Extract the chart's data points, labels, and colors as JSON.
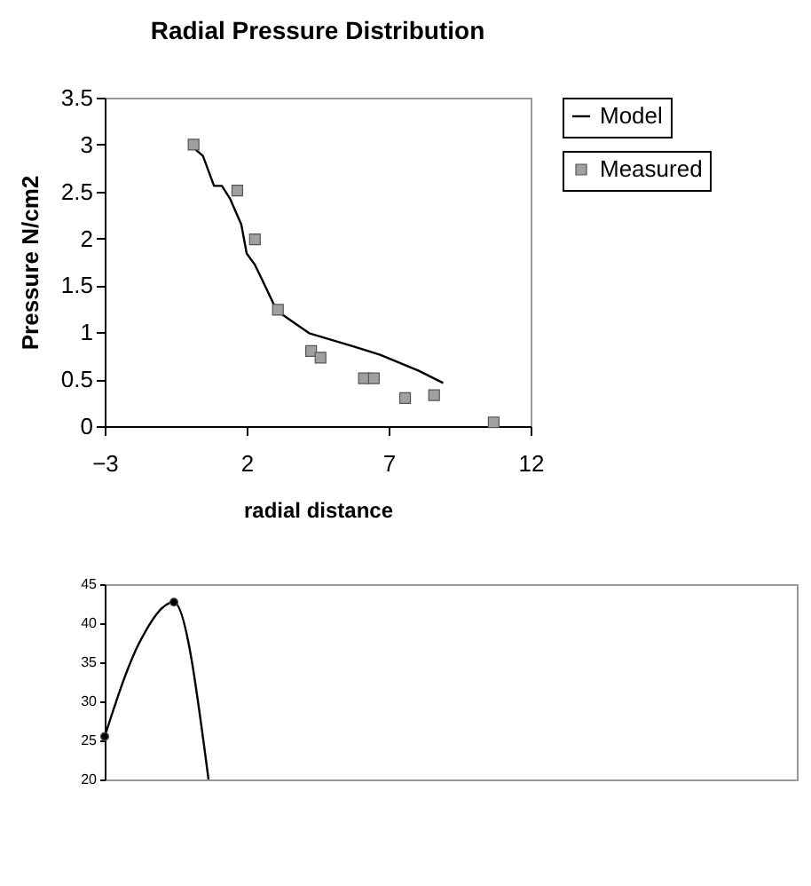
{
  "chart_data": [
    {
      "type": "line",
      "title": "Radial Pressure Distribution",
      "xlabel": "radial distance",
      "ylabel": "Pressure N/cm2",
      "xlim": [
        -3,
        12
      ],
      "xticks": [
        -3,
        2,
        7,
        12
      ],
      "ylim": [
        0,
        3.5
      ],
      "yticks": [
        0,
        0.5,
        1,
        1.5,
        2,
        2.5,
        3,
        3.5
      ],
      "grid": false,
      "legend": "right",
      "series": [
        {
          "name": "Model",
          "type": "line",
          "color": "#000000",
          "marker": "none",
          "x": [
            0,
            0.46,
            0.85,
            1.13,
            1.42,
            1.81,
            2,
            2.29,
            2.67,
            3.06,
            4.2,
            5.75,
            6.7,
            8.06,
            8.92
          ],
          "values": [
            3.0,
            2.88,
            2.56,
            2.56,
            2.42,
            2.15,
            1.84,
            1.72,
            1.48,
            1.23,
            0.99,
            0.85,
            0.76,
            0.59,
            0.46
          ]
        },
        {
          "name": "Measured",
          "type": "scatter",
          "color": "#a0a0a0",
          "marker": "square",
          "x": [
            0.13,
            1.67,
            2.29,
            3.1,
            4.27,
            4.6,
            6.13,
            6.48,
            7.58,
            8.6,
            10.7
          ],
          "values": [
            3.0,
            2.51,
            1.99,
            1.24,
            0.8,
            0.73,
            0.51,
            0.51,
            0.3,
            0.33,
            0.04
          ]
        }
      ]
    },
    {
      "type": "line",
      "ylim": [
        20,
        45
      ],
      "yticks": [
        20,
        25,
        30,
        35,
        40,
        45
      ],
      "grid": false,
      "categories": [
        null,
        null,
        null,
        null
      ],
      "series": [
        {
          "type": "line",
          "color": "#000000",
          "marker": "none",
          "values": [
            25.5,
            37.5,
            42.7,
            20
          ]
        },
        {
          "type": "scatter",
          "color": "#000000",
          "marker": "circle",
          "values": [
            25.5,
            null,
            42.7,
            null
          ]
        }
      ]
    }
  ]
}
